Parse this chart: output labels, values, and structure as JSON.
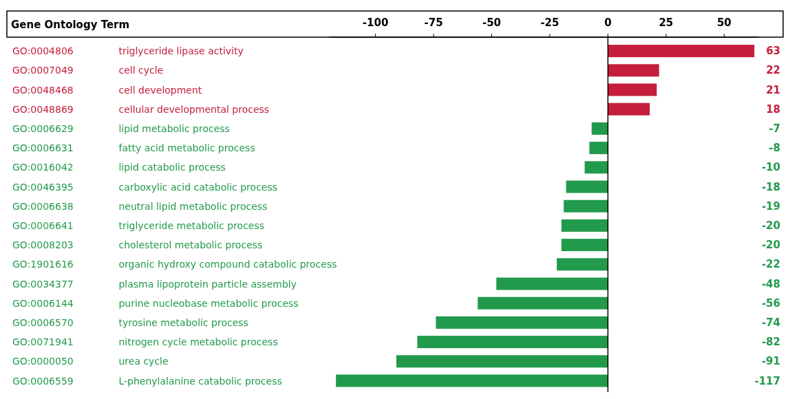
{
  "chart_data": {
    "type": "bar",
    "orientation": "horizontal",
    "annotations": [
      "Gene Ontology Term"
    ],
    "categories": [
      "GO:0004806 triglyceride lipase activity",
      "GO:0007049 cell cycle",
      "GO:0048468 cell development",
      "GO:0048869 cellular developmental process",
      "GO:0006629 lipid metabolic process",
      "GO:0006631 fatty acid metabolic process",
      "GO:0016042 lipid catabolic process",
      "GO:0046395 carboxylic acid catabolic process",
      "GO:0006638 neutral lipid metabolic process",
      "GO:0006641 triglyceride metabolic process",
      "GO:0008203 cholesterol metabolic process",
      "GO:1901616 organic hydroxy compound catabolic process",
      "GO:0034377 plasma lipoprotein particle assembly",
      "GO:0006144 purine nucleobase metabolic process",
      "GO:0006570 tyrosine metabolic process",
      "GO:0071941 nitrogen cycle metabolic process",
      "GO:0000050 urea cycle",
      "GO:0006559 L-phenylalanine catabolic process"
    ],
    "values": [
      63,
      22,
      21,
      18,
      -7,
      -8,
      -10,
      -18,
      -19,
      -20,
      -20,
      -22,
      -48,
      -56,
      -74,
      -82,
      -91,
      -117
    ],
    "colors": [
      "#c41e3a",
      "#c41e3a",
      "#c41e3a",
      "#c41e3a",
      "#229a4c",
      "#229a4c",
      "#229a4c",
      "#229a4c",
      "#229a4c",
      "#229a4c",
      "#229a4c",
      "#229a4c",
      "#229a4c",
      "#229a4c",
      "#229a4c",
      "#229a4c",
      "#229a4c",
      "#229a4c"
    ],
    "xlim": [
      -120,
      65
    ],
    "xticks": [
      -100,
      -75,
      -50,
      -25,
      0,
      25,
      50
    ],
    "data_labels": true
  }
}
